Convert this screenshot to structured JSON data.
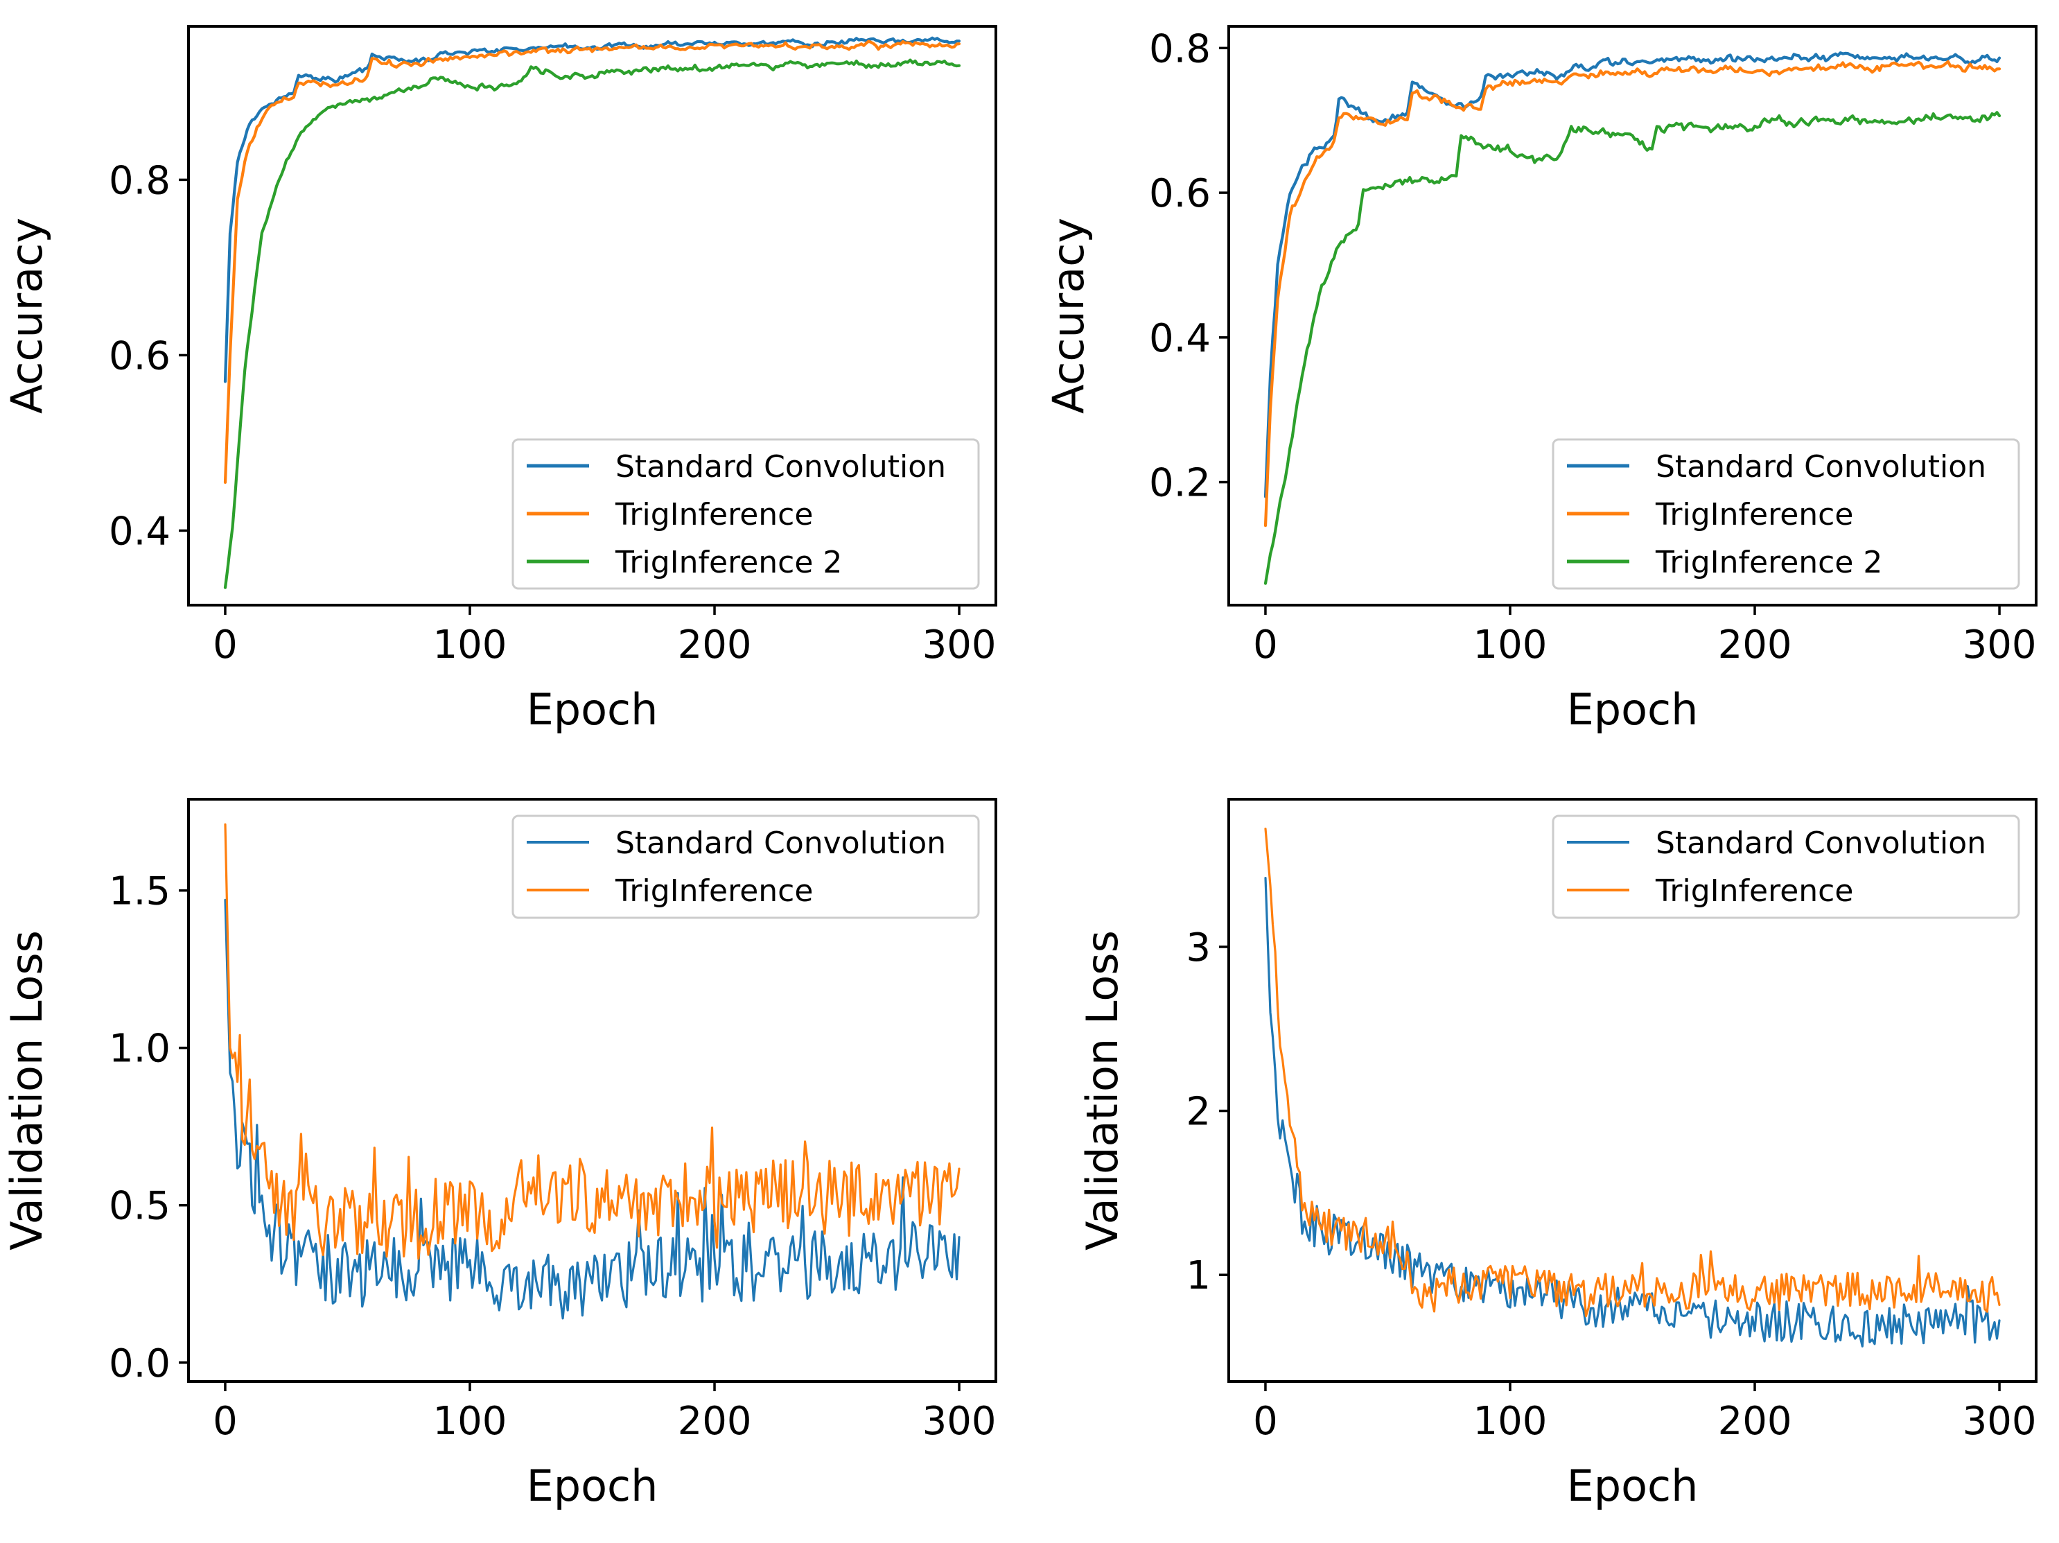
{
  "chart_data": [
    {
      "id": "acc-left",
      "type": "line",
      "title": "",
      "xlabel": "Epoch",
      "ylabel": "Accuracy",
      "xlim": [
        -15,
        315
      ],
      "ylim": [
        0.315,
        0.975
      ],
      "xticks": [
        0,
        100,
        200,
        300
      ],
      "yticks": [
        0.4,
        0.6,
        0.8
      ],
      "ytick_labels": [
        "0.4",
        "0.6",
        "0.8"
      ],
      "legend_position": "lower-right",
      "series": [
        {
          "name": "Standard Convolution",
          "color": "#1f77b4",
          "noise": 0.004,
          "points": [
            [
              0,
              0.57
            ],
            [
              2,
              0.74
            ],
            [
              5,
              0.82
            ],
            [
              10,
              0.865
            ],
            [
              15,
              0.88
            ],
            [
              20,
              0.89
            ],
            [
              28,
              0.9
            ],
            [
              30,
              0.92
            ],
            [
              45,
              0.915
            ],
            [
              58,
              0.925
            ],
            [
              60,
              0.94
            ],
            [
              80,
              0.935
            ],
            [
              90,
              0.945
            ],
            [
              120,
              0.95
            ],
            [
              150,
              0.952
            ],
            [
              200,
              0.955
            ],
            [
              250,
              0.957
            ],
            [
              300,
              0.958
            ]
          ]
        },
        {
          "name": "TrigInference",
          "color": "#ff7f0e",
          "noise": 0.005,
          "points": [
            [
              0,
              0.455
            ],
            [
              2,
              0.6
            ],
            [
              5,
              0.78
            ],
            [
              10,
              0.84
            ],
            [
              15,
              0.87
            ],
            [
              20,
              0.885
            ],
            [
              28,
              0.89
            ],
            [
              30,
              0.91
            ],
            [
              45,
              0.91
            ],
            [
              58,
              0.915
            ],
            [
              60,
              0.935
            ],
            [
              80,
              0.93
            ],
            [
              90,
              0.94
            ],
            [
              120,
              0.945
            ],
            [
              150,
              0.95
            ],
            [
              200,
              0.952
            ],
            [
              250,
              0.953
            ],
            [
              300,
              0.955
            ]
          ]
        },
        {
          "name": "TrigInference 2",
          "color": "#2ca02c",
          "noise": 0.005,
          "points": [
            [
              0,
              0.335
            ],
            [
              3,
              0.4
            ],
            [
              8,
              0.58
            ],
            [
              15,
              0.74
            ],
            [
              22,
              0.8
            ],
            [
              30,
              0.85
            ],
            [
              40,
              0.88
            ],
            [
              50,
              0.89
            ],
            [
              60,
              0.895
            ],
            [
              80,
              0.905
            ],
            [
              85,
              0.915
            ],
            [
              110,
              0.905
            ],
            [
              120,
              0.91
            ],
            [
              125,
              0.925
            ],
            [
              150,
              0.918
            ],
            [
              160,
              0.925
            ],
            [
              200,
              0.928
            ],
            [
              250,
              0.932
            ],
            [
              300,
              0.933
            ]
          ]
        }
      ]
    },
    {
      "id": "acc-right",
      "type": "line",
      "title": "",
      "xlabel": "Epoch",
      "ylabel": "Accuracy",
      "xlim": [
        -15,
        315
      ],
      "ylim": [
        0.03,
        0.83
      ],
      "xticks": [
        0,
        100,
        200,
        300
      ],
      "yticks": [
        0.2,
        0.4,
        0.6,
        0.8
      ],
      "ytick_labels": [
        "0.2",
        "0.4",
        "0.6",
        "0.8"
      ],
      "legend_position": "lower-right",
      "series": [
        {
          "name": "Standard Convolution",
          "color": "#1f77b4",
          "noise": 0.007,
          "points": [
            [
              0,
              0.18
            ],
            [
              2,
              0.35
            ],
            [
              5,
              0.5
            ],
            [
              10,
              0.6
            ],
            [
              20,
              0.66
            ],
            [
              28,
              0.68
            ],
            [
              30,
              0.73
            ],
            [
              45,
              0.7
            ],
            [
              58,
              0.71
            ],
            [
              60,
              0.75
            ],
            [
              80,
              0.72
            ],
            [
              88,
              0.73
            ],
            [
              90,
              0.76
            ],
            [
              110,
              0.765
            ],
            [
              120,
              0.76
            ],
            [
              125,
              0.775
            ],
            [
              150,
              0.78
            ],
            [
              200,
              0.785
            ],
            [
              250,
              0.787
            ],
            [
              300,
              0.787
            ]
          ]
        },
        {
          "name": "TrigInference",
          "color": "#ff7f0e",
          "noise": 0.007,
          "points": [
            [
              0,
              0.14
            ],
            [
              2,
              0.3
            ],
            [
              5,
              0.45
            ],
            [
              10,
              0.57
            ],
            [
              20,
              0.64
            ],
            [
              28,
              0.67
            ],
            [
              30,
              0.71
            ],
            [
              45,
              0.695
            ],
            [
              58,
              0.7
            ],
            [
              60,
              0.74
            ],
            [
              80,
              0.72
            ],
            [
              88,
              0.72
            ],
            [
              90,
              0.75
            ],
            [
              110,
              0.755
            ],
            [
              120,
              0.75
            ],
            [
              125,
              0.76
            ],
            [
              150,
              0.765
            ],
            [
              200,
              0.77
            ],
            [
              250,
              0.775
            ],
            [
              300,
              0.775
            ]
          ]
        },
        {
          "name": "TrigInference 2",
          "color": "#2ca02c",
          "noise": 0.008,
          "points": [
            [
              0,
              0.06
            ],
            [
              3,
              0.12
            ],
            [
              8,
              0.2
            ],
            [
              15,
              0.35
            ],
            [
              22,
              0.46
            ],
            [
              30,
              0.53
            ],
            [
              38,
              0.56
            ],
            [
              40,
              0.61
            ],
            [
              60,
              0.615
            ],
            [
              78,
              0.62
            ],
            [
              80,
              0.675
            ],
            [
              100,
              0.66
            ],
            [
              110,
              0.64
            ],
            [
              120,
              0.65
            ],
            [
              125,
              0.69
            ],
            [
              150,
              0.68
            ],
            [
              158,
              0.66
            ],
            [
              160,
              0.69
            ],
            [
              200,
              0.695
            ],
            [
              250,
              0.7
            ],
            [
              300,
              0.707
            ]
          ]
        }
      ]
    },
    {
      "id": "loss-left",
      "type": "line",
      "title": "",
      "xlabel": "Epoch",
      "ylabel": "Validation Loss",
      "xlim": [
        -15,
        315
      ],
      "ylim": [
        -0.06,
        1.79
      ],
      "xticks": [
        0,
        100,
        200,
        300
      ],
      "yticks": [
        0.0,
        0.5,
        1.0,
        1.5
      ],
      "ytick_labels": [
        "0.0",
        "0.5",
        "1.0",
        "1.5"
      ],
      "legend_position": "upper-right",
      "series": [
        {
          "name": "Standard Convolution",
          "color": "#1f77b4",
          "noise": 0.11,
          "points": [
            [
              0,
              1.47
            ],
            [
              2,
              0.92
            ],
            [
              5,
              0.72
            ],
            [
              10,
              0.6
            ],
            [
              20,
              0.4
            ],
            [
              40,
              0.3
            ],
            [
              60,
              0.28
            ],
            [
              80,
              0.3
            ],
            [
              100,
              0.3
            ],
            [
              110,
              0.25
            ],
            [
              130,
              0.25
            ],
            [
              150,
              0.25
            ],
            [
              180,
              0.3
            ],
            [
              200,
              0.3
            ],
            [
              230,
              0.3
            ],
            [
              260,
              0.33
            ],
            [
              300,
              0.36
            ]
          ]
        },
        {
          "name": "TrigInference",
          "color": "#ff7f0e",
          "noise": 0.12,
          "points": [
            [
              0,
              1.71
            ],
            [
              2,
              1.0
            ],
            [
              5,
              0.85
            ],
            [
              10,
              0.7
            ],
            [
              20,
              0.5
            ],
            [
              40,
              0.45
            ],
            [
              60,
              0.45
            ],
            [
              80,
              0.45
            ],
            [
              100,
              0.5
            ],
            [
              110,
              0.45
            ],
            [
              120,
              0.6
            ],
            [
              140,
              0.55
            ],
            [
              160,
              0.5
            ],
            [
              200,
              0.52
            ],
            [
              230,
              0.53
            ],
            [
              260,
              0.52
            ],
            [
              300,
              0.53
            ]
          ]
        }
      ]
    },
    {
      "id": "loss-right",
      "type": "line",
      "title": "",
      "xlabel": "Epoch",
      "ylabel": "Validation Loss",
      "xlim": [
        -15,
        315
      ],
      "ylim": [
        0.35,
        3.9
      ],
      "xticks": [
        0,
        100,
        200,
        300
      ],
      "yticks": [
        1,
        2,
        3
      ],
      "ytick_labels": [
        "1",
        "2",
        "3"
      ],
      "legend_position": "upper-right",
      "series": [
        {
          "name": "Standard Convolution",
          "color": "#1f77b4",
          "noise": 0.13,
          "points": [
            [
              0,
              3.42
            ],
            [
              2,
              2.6
            ],
            [
              5,
              2.0
            ],
            [
              10,
              1.7
            ],
            [
              15,
              1.35
            ],
            [
              25,
              1.25
            ],
            [
              40,
              1.2
            ],
            [
              60,
              1.05
            ],
            [
              80,
              0.95
            ],
            [
              100,
              0.9
            ],
            [
              120,
              0.85
            ],
            [
              150,
              0.78
            ],
            [
              200,
              0.72
            ],
            [
              250,
              0.7
            ],
            [
              300,
              0.72
            ]
          ]
        },
        {
          "name": "TrigInference",
          "color": "#ff7f0e",
          "noise": 0.12,
          "points": [
            [
              0,
              3.72
            ],
            [
              3,
              3.2
            ],
            [
              6,
              2.5
            ],
            [
              10,
              1.9
            ],
            [
              15,
              1.45
            ],
            [
              25,
              1.3
            ],
            [
              40,
              1.25
            ],
            [
              55,
              1.2
            ],
            [
              62,
              0.85
            ],
            [
              80,
              0.95
            ],
            [
              100,
              0.95
            ],
            [
              120,
              0.9
            ],
            [
              150,
              0.88
            ],
            [
              200,
              0.9
            ],
            [
              250,
              0.9
            ],
            [
              300,
              0.88
            ]
          ]
        }
      ]
    }
  ]
}
